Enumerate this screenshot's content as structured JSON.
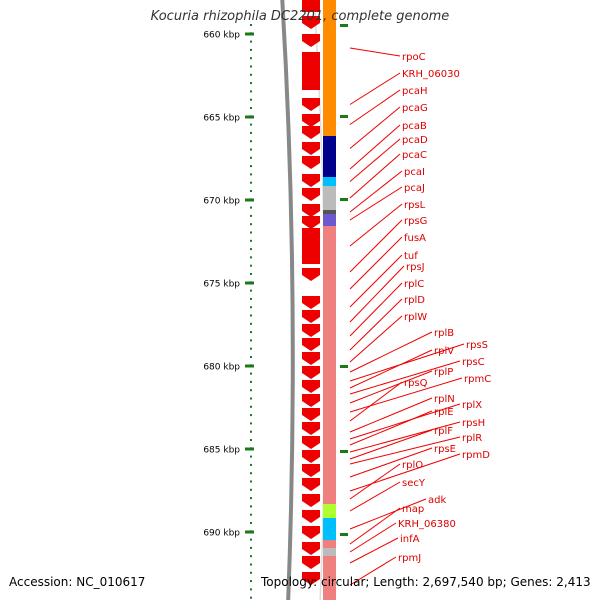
{
  "title": "Kocuria rhizophila DC2201, complete genome",
  "accession_label": "Accession: NC_010617",
  "stats_label": "Topology: circular; Length: 2,697,540 bp; Genes: 2,413",
  "scale": {
    "ticks": [
      {
        "value_kbp": 660,
        "label": "660 kbp"
      },
      {
        "value_kbp": 665,
        "label": "665 kbp"
      },
      {
        "value_kbp": 670,
        "label": "670 kbp"
      },
      {
        "value_kbp": 675,
        "label": "675 kbp"
      },
      {
        "value_kbp": 680,
        "label": "680 kbp"
      },
      {
        "value_kbp": 685,
        "label": "685 kbp"
      },
      {
        "value_kbp": 690,
        "label": "690 kbp"
      }
    ]
  },
  "colors": {
    "tick": "#1a7a1a",
    "axis": "#777777",
    "gene_arrow": "#ee0000",
    "label": "#dd0000",
    "leader": "#ee0000"
  },
  "genes": [
    {
      "label": "rpoC",
      "color": "#ff8c00"
    },
    {
      "label": "KRH_06030",
      "color": "#ff8c00"
    },
    {
      "label": "pcaH",
      "color": "#ff8c00"
    },
    {
      "label": "pcaG",
      "color": "#00008b"
    },
    {
      "label": "pcaB",
      "color": "#00008b"
    },
    {
      "label": "pcaD",
      "color": "#00bfff"
    },
    {
      "label": "pcaC",
      "color": "#bbbbbb"
    },
    {
      "label": "pcaI",
      "color": "#555555"
    },
    {
      "label": "pcaJ",
      "color": "#6a5acd"
    },
    {
      "label": "rpsL",
      "color": "#f08080"
    },
    {
      "label": "rpsG",
      "color": "#f08080"
    },
    {
      "label": "fusA",
      "color": "#f08080"
    },
    {
      "label": "tuf",
      "color": "#f08080"
    },
    {
      "label": "rpsJ",
      "color": "#f08080"
    },
    {
      "label": "rplC",
      "color": "#f08080"
    },
    {
      "label": "rplD",
      "color": "#f08080"
    },
    {
      "label": "rplW",
      "color": "#f08080"
    },
    {
      "label": "rplB",
      "color": "#f08080"
    },
    {
      "label": "rpsS",
      "color": "#f08080"
    },
    {
      "label": "rplV",
      "color": "#f08080"
    },
    {
      "label": "rpsC",
      "color": "#f08080"
    },
    {
      "label": "rplP",
      "color": "#f08080"
    },
    {
      "label": "rpmC",
      "color": "#f08080"
    },
    {
      "label": "rpsQ",
      "color": "#f08080"
    },
    {
      "label": "rplN",
      "color": "#f08080"
    },
    {
      "label": "rplX",
      "color": "#f08080"
    },
    {
      "label": "rplE",
      "color": "#f08080"
    },
    {
      "label": "rpsH",
      "color": "#f08080"
    },
    {
      "label": "rplF",
      "color": "#f08080"
    },
    {
      "label": "rplR",
      "color": "#f08080"
    },
    {
      "label": "rpsE",
      "color": "#f08080"
    },
    {
      "label": "rpmD",
      "color": "#f08080"
    },
    {
      "label": "rplO",
      "color": "#f08080"
    },
    {
      "label": "secY",
      "color": "#adff2f"
    },
    {
      "label": "adk",
      "color": "#00bfff"
    },
    {
      "label": "map",
      "color": "#f08080"
    },
    {
      "label": "KRH_06380",
      "color": "#bbbbbb"
    },
    {
      "label": "infA",
      "color": "#f08080"
    },
    {
      "label": "rpmJ",
      "color": "#f08080"
    }
  ]
}
